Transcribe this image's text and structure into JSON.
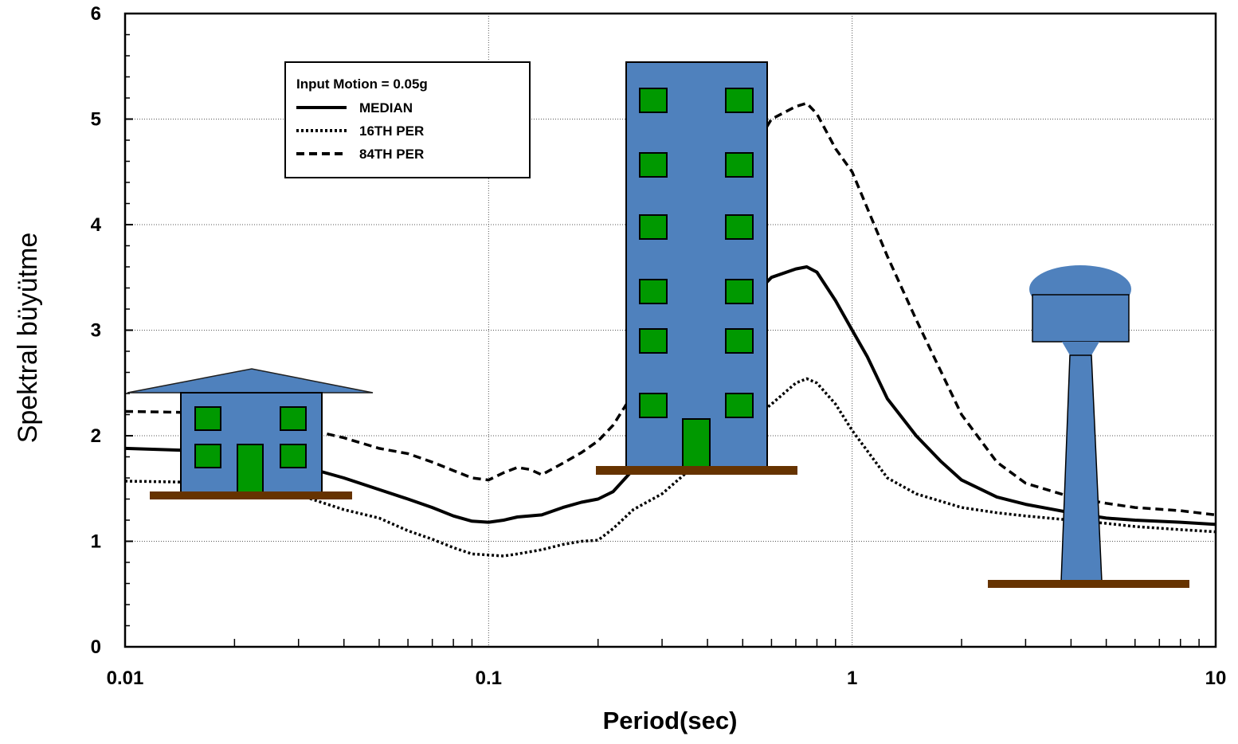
{
  "chart_data": {
    "type": "line",
    "xlabel": "Period(sec)",
    "ylabel": "Spektral büyütme",
    "x_scale": "log",
    "xlim": [
      0.01,
      10
    ],
    "ylim": [
      0,
      6
    ],
    "x_ticks": [
      "0.01",
      "0.1",
      "1",
      "10"
    ],
    "y_ticks": [
      "0",
      "1",
      "2",
      "3",
      "4",
      "5",
      "6"
    ],
    "grid": true,
    "legend": {
      "position": "top-left",
      "title": "Input Motion = 0.05g",
      "entries": [
        "MEDIAN",
        "16TH PER",
        "84TH PER"
      ]
    },
    "series": [
      {
        "name": "MEDIAN",
        "style": "solid",
        "x": [
          0.01,
          0.015,
          0.02,
          0.03,
          0.04,
          0.05,
          0.06,
          0.07,
          0.08,
          0.09,
          0.1,
          0.11,
          0.12,
          0.14,
          0.16,
          0.18,
          0.2,
          0.22,
          0.25,
          0.3,
          0.35,
          0.4,
          0.5,
          0.6,
          0.7,
          0.75,
          0.8,
          0.9,
          1.0,
          1.1,
          1.25,
          1.5,
          1.75,
          2.0,
          2.5,
          3.0,
          4.0,
          5.0,
          6.0,
          8.0,
          10.0
        ],
        "values": [
          1.88,
          1.86,
          1.82,
          1.72,
          1.6,
          1.49,
          1.4,
          1.32,
          1.24,
          1.19,
          1.18,
          1.2,
          1.23,
          1.25,
          1.32,
          1.37,
          1.4,
          1.47,
          1.68,
          2.05,
          2.45,
          2.85,
          3.22,
          3.5,
          3.58,
          3.6,
          3.55,
          3.28,
          3.0,
          2.75,
          2.35,
          2.0,
          1.76,
          1.58,
          1.42,
          1.35,
          1.27,
          1.22,
          1.2,
          1.18,
          1.16
        ]
      },
      {
        "name": "16TH PER",
        "style": "dotted",
        "x": [
          0.01,
          0.015,
          0.02,
          0.03,
          0.04,
          0.05,
          0.06,
          0.07,
          0.08,
          0.09,
          0.1,
          0.11,
          0.12,
          0.14,
          0.16,
          0.18,
          0.2,
          0.22,
          0.25,
          0.3,
          0.35,
          0.4,
          0.5,
          0.6,
          0.7,
          0.75,
          0.8,
          0.9,
          1.0,
          1.25,
          1.5,
          2.0,
          2.5,
          3.0,
          4.0,
          5.0,
          6.0,
          8.0,
          10.0
        ],
        "values": [
          1.57,
          1.56,
          1.54,
          1.44,
          1.3,
          1.22,
          1.1,
          1.02,
          0.94,
          0.88,
          0.87,
          0.86,
          0.88,
          0.92,
          0.97,
          1.0,
          1.01,
          1.12,
          1.3,
          1.45,
          1.65,
          1.85,
          2.08,
          2.3,
          2.5,
          2.54,
          2.5,
          2.3,
          2.05,
          1.6,
          1.45,
          1.32,
          1.27,
          1.24,
          1.2,
          1.17,
          1.14,
          1.11,
          1.09
        ]
      },
      {
        "name": "84TH PER",
        "style": "dashed",
        "x": [
          0.01,
          0.015,
          0.02,
          0.03,
          0.04,
          0.05,
          0.06,
          0.07,
          0.08,
          0.09,
          0.1,
          0.11,
          0.12,
          0.13,
          0.14,
          0.16,
          0.18,
          0.2,
          0.22,
          0.25,
          0.3,
          0.35,
          0.4,
          0.5,
          0.6,
          0.7,
          0.75,
          0.8,
          0.9,
          1.0,
          1.25,
          1.5,
          2.0,
          2.5,
          3.0,
          4.0,
          5.0,
          6.0,
          8.0,
          10.0
        ],
        "values": [
          2.23,
          2.22,
          2.2,
          2.08,
          1.98,
          1.88,
          1.83,
          1.75,
          1.67,
          1.6,
          1.58,
          1.65,
          1.7,
          1.68,
          1.63,
          1.74,
          1.84,
          1.95,
          2.1,
          2.4,
          2.9,
          3.5,
          4.0,
          4.55,
          5.0,
          5.12,
          5.15,
          5.05,
          4.72,
          4.5,
          3.7,
          3.1,
          2.2,
          1.75,
          1.55,
          1.42,
          1.36,
          1.32,
          1.29,
          1.25
        ]
      }
    ]
  },
  "illustrations": [
    {
      "name": "house-illustration",
      "colors": {
        "wall": "#4f81bd",
        "window": "#009900",
        "ground": "#663300"
      }
    },
    {
      "name": "apartment-building-illustration",
      "colors": {
        "wall": "#4f81bd",
        "window": "#009900",
        "ground": "#663300"
      }
    },
    {
      "name": "water-tower-illustration",
      "colors": {
        "body": "#4f81bd",
        "ground": "#663300"
      }
    }
  ]
}
